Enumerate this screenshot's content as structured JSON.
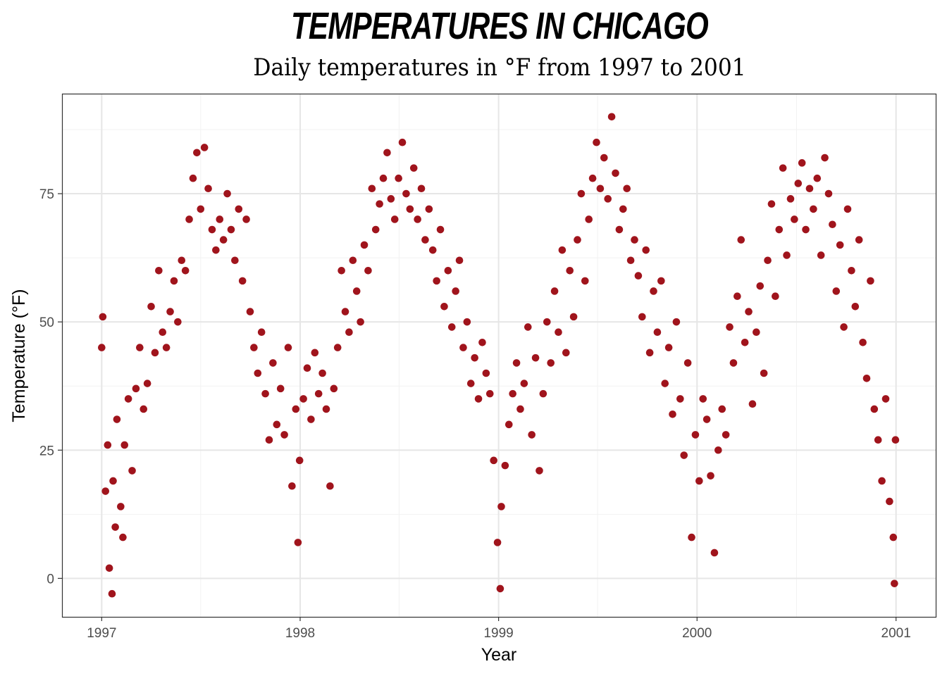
{
  "chart_data": {
    "type": "scatter",
    "title": "Temperatures in Chicago",
    "subtitle": "Daily temperatures in °F from 1997 to 2001",
    "xlabel": "Year",
    "ylabel": "Temperature (°F)",
    "x_ticks": [
      "1997",
      "1998",
      "1999",
      "2000",
      "2001"
    ],
    "y_ticks": [
      "0",
      "25",
      "50",
      "75"
    ],
    "xlim": [
      "1996-10-20",
      "2001-03-15"
    ],
    "ylim": [
      -7.5,
      94.5
    ],
    "grid": true,
    "point_color": "#A0141C",
    "points": [
      [
        "1997-01-01",
        45
      ],
      [
        "1997-01-03",
        51
      ],
      [
        "1997-01-08",
        17
      ],
      [
        "1997-01-12",
        26
      ],
      [
        "1997-01-15",
        2
      ],
      [
        "1997-01-20",
        -3
      ],
      [
        "1997-01-22",
        19
      ],
      [
        "1997-01-26",
        10
      ],
      [
        "1997-01-29",
        31
      ],
      [
        "1997-02-05",
        14
      ],
      [
        "1997-02-09",
        8
      ],
      [
        "1997-02-12",
        26
      ],
      [
        "1997-02-19",
        35
      ],
      [
        "1997-02-26",
        21
      ],
      [
        "1997-03-05",
        37
      ],
      [
        "1997-03-12",
        45
      ],
      [
        "1997-03-19",
        33
      ],
      [
        "1997-03-26",
        38
      ],
      [
        "1997-04-02",
        53
      ],
      [
        "1997-04-09",
        44
      ],
      [
        "1997-04-16",
        60
      ],
      [
        "1997-04-23",
        48
      ],
      [
        "1997-04-30",
        45
      ],
      [
        "1997-05-07",
        52
      ],
      [
        "1997-05-14",
        58
      ],
      [
        "1997-05-21",
        50
      ],
      [
        "1997-05-28",
        62
      ],
      [
        "1997-06-04",
        60
      ],
      [
        "1997-06-11",
        70
      ],
      [
        "1997-06-18",
        78
      ],
      [
        "1997-06-25",
        83
      ],
      [
        "1997-07-02",
        72
      ],
      [
        "1997-07-09",
        84
      ],
      [
        "1997-07-16",
        76
      ],
      [
        "1997-07-23",
        68
      ],
      [
        "1997-07-30",
        64
      ],
      [
        "1997-08-06",
        70
      ],
      [
        "1997-08-13",
        66
      ],
      [
        "1997-08-20",
        75
      ],
      [
        "1997-08-27",
        68
      ],
      [
        "1997-09-03",
        62
      ],
      [
        "1997-09-10",
        72
      ],
      [
        "1997-09-17",
        58
      ],
      [
        "1997-09-24",
        70
      ],
      [
        "1997-10-01",
        52
      ],
      [
        "1997-10-08",
        45
      ],
      [
        "1997-10-15",
        40
      ],
      [
        "1997-10-22",
        48
      ],
      [
        "1997-10-29",
        36
      ],
      [
        "1997-11-05",
        27
      ],
      [
        "1997-11-12",
        42
      ],
      [
        "1997-11-19",
        30
      ],
      [
        "1997-11-26",
        37
      ],
      [
        "1997-12-03",
        28
      ],
      [
        "1997-12-10",
        45
      ],
      [
        "1997-12-17",
        18
      ],
      [
        "1997-12-24",
        33
      ],
      [
        "1997-12-28",
        7
      ],
      [
        "1997-12-31",
        23
      ],
      [
        "1998-01-07",
        35
      ],
      [
        "1998-01-14",
        41
      ],
      [
        "1998-01-21",
        31
      ],
      [
        "1998-01-28",
        44
      ],
      [
        "1998-02-04",
        36
      ],
      [
        "1998-02-11",
        40
      ],
      [
        "1998-02-18",
        33
      ],
      [
        "1998-02-25",
        18
      ],
      [
        "1998-03-04",
        37
      ],
      [
        "1998-03-11",
        45
      ],
      [
        "1998-03-18",
        60
      ],
      [
        "1998-03-25",
        52
      ],
      [
        "1998-04-01",
        48
      ],
      [
        "1998-04-08",
        62
      ],
      [
        "1998-04-15",
        56
      ],
      [
        "1998-04-22",
        50
      ],
      [
        "1998-04-29",
        65
      ],
      [
        "1998-05-06",
        60
      ],
      [
        "1998-05-13",
        76
      ],
      [
        "1998-05-20",
        68
      ],
      [
        "1998-05-27",
        73
      ],
      [
        "1998-06-03",
        78
      ],
      [
        "1998-06-10",
        83
      ],
      [
        "1998-06-17",
        74
      ],
      [
        "1998-06-24",
        70
      ],
      [
        "1998-07-01",
        78
      ],
      [
        "1998-07-08",
        85
      ],
      [
        "1998-07-15",
        75
      ],
      [
        "1998-07-22",
        72
      ],
      [
        "1998-07-29",
        80
      ],
      [
        "1998-08-05",
        70
      ],
      [
        "1998-08-12",
        76
      ],
      [
        "1998-08-19",
        66
      ],
      [
        "1998-08-26",
        72
      ],
      [
        "1998-09-02",
        64
      ],
      [
        "1998-09-09",
        58
      ],
      [
        "1998-09-16",
        68
      ],
      [
        "1998-09-23",
        53
      ],
      [
        "1998-09-30",
        60
      ],
      [
        "1998-10-07",
        49
      ],
      [
        "1998-10-14",
        56
      ],
      [
        "1998-10-21",
        62
      ],
      [
        "1998-10-28",
        45
      ],
      [
        "1998-11-04",
        50
      ],
      [
        "1998-11-11",
        38
      ],
      [
        "1998-11-18",
        43
      ],
      [
        "1998-11-25",
        35
      ],
      [
        "1998-12-02",
        46
      ],
      [
        "1998-12-09",
        40
      ],
      [
        "1998-12-16",
        36
      ],
      [
        "1998-12-23",
        23
      ],
      [
        "1998-12-30",
        7
      ],
      [
        "1999-01-04",
        -2
      ],
      [
        "1999-01-06",
        14
      ],
      [
        "1999-01-13",
        22
      ],
      [
        "1999-01-20",
        30
      ],
      [
        "1999-01-27",
        36
      ],
      [
        "1999-02-03",
        42
      ],
      [
        "1999-02-10",
        33
      ],
      [
        "1999-02-17",
        38
      ],
      [
        "1999-02-24",
        49
      ],
      [
        "1999-03-03",
        28
      ],
      [
        "1999-03-10",
        43
      ],
      [
        "1999-03-17",
        21
      ],
      [
        "1999-03-24",
        36
      ],
      [
        "1999-03-31",
        50
      ],
      [
        "1999-04-07",
        42
      ],
      [
        "1999-04-14",
        56
      ],
      [
        "1999-04-21",
        48
      ],
      [
        "1999-04-28",
        64
      ],
      [
        "1999-05-05",
        44
      ],
      [
        "1999-05-12",
        60
      ],
      [
        "1999-05-19",
        51
      ],
      [
        "1999-05-26",
        66
      ],
      [
        "1999-06-02",
        75
      ],
      [
        "1999-06-09",
        58
      ],
      [
        "1999-06-16",
        70
      ],
      [
        "1999-06-23",
        78
      ],
      [
        "1999-06-30",
        85
      ],
      [
        "1999-07-07",
        76
      ],
      [
        "1999-07-14",
        82
      ],
      [
        "1999-07-21",
        74
      ],
      [
        "1999-07-28",
        90
      ],
      [
        "1999-08-04",
        79
      ],
      [
        "1999-08-11",
        68
      ],
      [
        "1999-08-18",
        72
      ],
      [
        "1999-08-25",
        76
      ],
      [
        "1999-09-01",
        62
      ],
      [
        "1999-09-08",
        66
      ],
      [
        "1999-09-15",
        59
      ],
      [
        "1999-09-22",
        51
      ],
      [
        "1999-09-29",
        64
      ],
      [
        "1999-10-06",
        44
      ],
      [
        "1999-10-13",
        56
      ],
      [
        "1999-10-20",
        48
      ],
      [
        "1999-10-27",
        58
      ],
      [
        "1999-11-03",
        38
      ],
      [
        "1999-11-10",
        45
      ],
      [
        "1999-11-17",
        32
      ],
      [
        "1999-11-24",
        50
      ],
      [
        "1999-12-01",
        35
      ],
      [
        "1999-12-08",
        24
      ],
      [
        "1999-12-15",
        42
      ],
      [
        "1999-12-22",
        8
      ],
      [
        "1999-12-29",
        28
      ],
      [
        "2000-01-05",
        19
      ],
      [
        "2000-01-12",
        35
      ],
      [
        "2000-01-19",
        31
      ],
      [
        "2000-01-26",
        20
      ],
      [
        "2000-02-02",
        5
      ],
      [
        "2000-02-09",
        25
      ],
      [
        "2000-02-16",
        33
      ],
      [
        "2000-02-23",
        28
      ],
      [
        "2000-03-01",
        49
      ],
      [
        "2000-03-08",
        42
      ],
      [
        "2000-03-15",
        55
      ],
      [
        "2000-03-22",
        66
      ],
      [
        "2000-03-29",
        46
      ],
      [
        "2000-04-05",
        52
      ],
      [
        "2000-04-12",
        34
      ],
      [
        "2000-04-19",
        48
      ],
      [
        "2000-04-26",
        57
      ],
      [
        "2000-05-03",
        40
      ],
      [
        "2000-05-10",
        62
      ],
      [
        "2000-05-17",
        73
      ],
      [
        "2000-05-24",
        55
      ],
      [
        "2000-05-31",
        68
      ],
      [
        "2000-06-07",
        80
      ],
      [
        "2000-06-14",
        63
      ],
      [
        "2000-06-21",
        74
      ],
      [
        "2000-06-28",
        70
      ],
      [
        "2000-07-05",
        77
      ],
      [
        "2000-07-12",
        81
      ],
      [
        "2000-07-19",
        68
      ],
      [
        "2000-07-26",
        76
      ],
      [
        "2000-08-02",
        72
      ],
      [
        "2000-08-09",
        78
      ],
      [
        "2000-08-16",
        63
      ],
      [
        "2000-08-23",
        82
      ],
      [
        "2000-08-30",
        75
      ],
      [
        "2000-09-06",
        69
      ],
      [
        "2000-09-13",
        56
      ],
      [
        "2000-09-20",
        65
      ],
      [
        "2000-09-27",
        49
      ],
      [
        "2000-10-04",
        72
      ],
      [
        "2000-10-11",
        60
      ],
      [
        "2000-10-18",
        53
      ],
      [
        "2000-10-25",
        66
      ],
      [
        "2000-11-01",
        46
      ],
      [
        "2000-11-08",
        39
      ],
      [
        "2000-11-15",
        58
      ],
      [
        "2000-11-22",
        33
      ],
      [
        "2000-11-29",
        27
      ],
      [
        "2000-12-06",
        19
      ],
      [
        "2000-12-13",
        35
      ],
      [
        "2000-12-20",
        15
      ],
      [
        "2000-12-27",
        8
      ],
      [
        "2000-12-29",
        -1
      ],
      [
        "2000-12-31",
        27
      ]
    ]
  }
}
